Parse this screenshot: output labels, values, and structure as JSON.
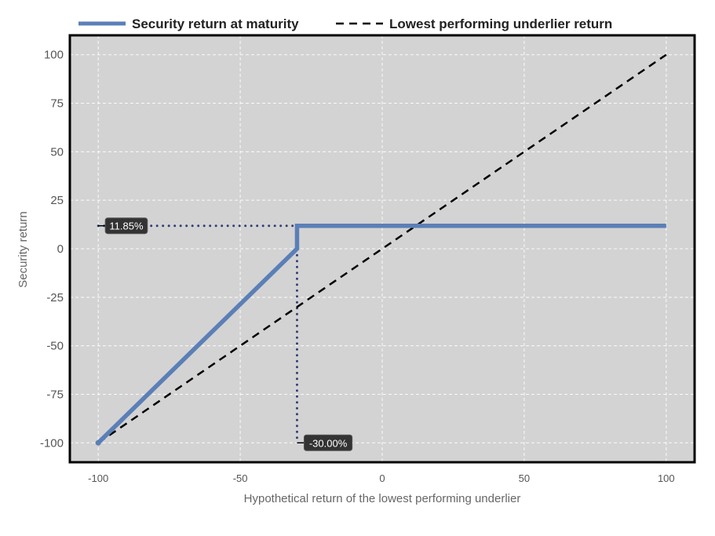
{
  "chart_data": {
    "type": "line",
    "title": "",
    "xlabel": "Hypothetical return of the lowest performing underlier",
    "ylabel": "Security return",
    "xlim": [
      -110,
      110
    ],
    "ylim": [
      -110,
      110
    ],
    "x_ticks": [
      -100,
      -50,
      0,
      50,
      100
    ],
    "y_ticks": [
      -100,
      -75,
      -50,
      -25,
      0,
      25,
      50,
      75,
      100
    ],
    "grid": true,
    "legend_position": "top",
    "series": [
      {
        "name": "Security return at maturity",
        "style": "solid",
        "color": "#5b7fb7",
        "points": [
          [
            -100,
            -100
          ],
          [
            -30,
            0
          ],
          [
            -30,
            11.85
          ],
          [
            100,
            11.85
          ]
        ]
      },
      {
        "name": "Lowest performing underlier return",
        "style": "dashed",
        "color": "#000000",
        "points": [
          [
            -100,
            -100
          ],
          [
            100,
            100
          ]
        ]
      }
    ],
    "reference_lines": [
      {
        "style": "dotted",
        "color": "#2f3e75",
        "points": [
          [
            -100,
            11.85
          ],
          [
            -30,
            11.85
          ]
        ]
      },
      {
        "style": "dotted",
        "color": "#2f3e75",
        "points": [
          [
            -30,
            11.85
          ],
          [
            -30,
            -100
          ]
        ]
      }
    ],
    "annotations": [
      {
        "text": "11.85%",
        "x": -100,
        "y": 11.85,
        "anchor": "y-axis"
      },
      {
        "text": "-30.00%",
        "x": -30,
        "y": -100,
        "anchor": "x-axis"
      }
    ]
  }
}
